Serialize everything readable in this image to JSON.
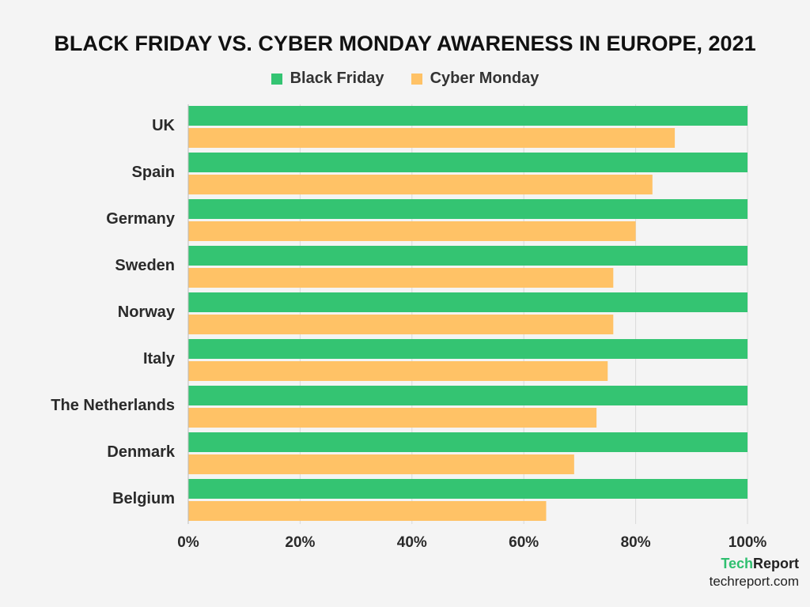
{
  "chart_data": {
    "type": "bar",
    "orientation": "horizontal",
    "title": "BLACK FRIDAY VS. CYBER MONDAY AWARENESS IN EUROPE, 2021",
    "categories": [
      "UK",
      "Spain",
      "Germany",
      "Sweden",
      "Norway",
      "Italy",
      "The Netherlands",
      "Denmark",
      "Belgium"
    ],
    "series": [
      {
        "name": "Black Friday",
        "color": "#34c472",
        "values": [
          100,
          100,
          100,
          100,
          100,
          100,
          100,
          100,
          100
        ]
      },
      {
        "name": "Cyber Monday",
        "color": "#ffc266",
        "values": [
          87,
          83,
          80,
          76,
          76,
          75,
          73,
          69,
          64
        ]
      }
    ],
    "xlim": [
      0,
      100
    ],
    "x_ticks": [
      "0%",
      "20%",
      "40%",
      "60%",
      "80%",
      "100%"
    ],
    "grid": true,
    "legend_position": "top"
  },
  "branding": {
    "logo_part1": "Tech",
    "logo_part2": "Report",
    "website": "techreport.com"
  }
}
